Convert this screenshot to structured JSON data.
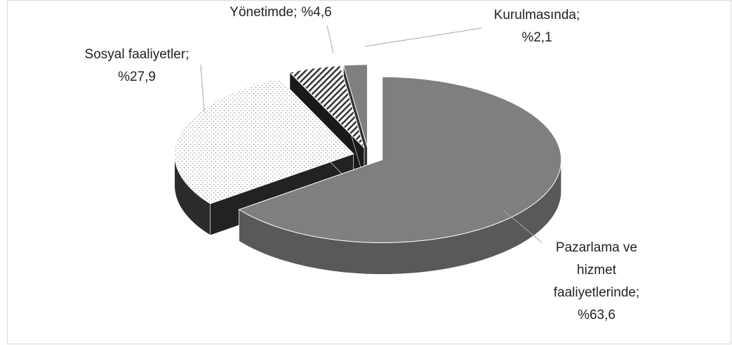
{
  "chart_data": {
    "type": "pie",
    "categories": [
      "Pazarlama ve hizmet faaliyetlerinde;",
      "Sosyal faaliyetler;",
      "Yönetimde;",
      "Kurulmasında;"
    ],
    "values": [
      63.6,
      27.9,
      4.6,
      2.1
    ],
    "value_labels": [
      "%63,6",
      "%27,9",
      "%4,6",
      "%2,1"
    ]
  }
}
